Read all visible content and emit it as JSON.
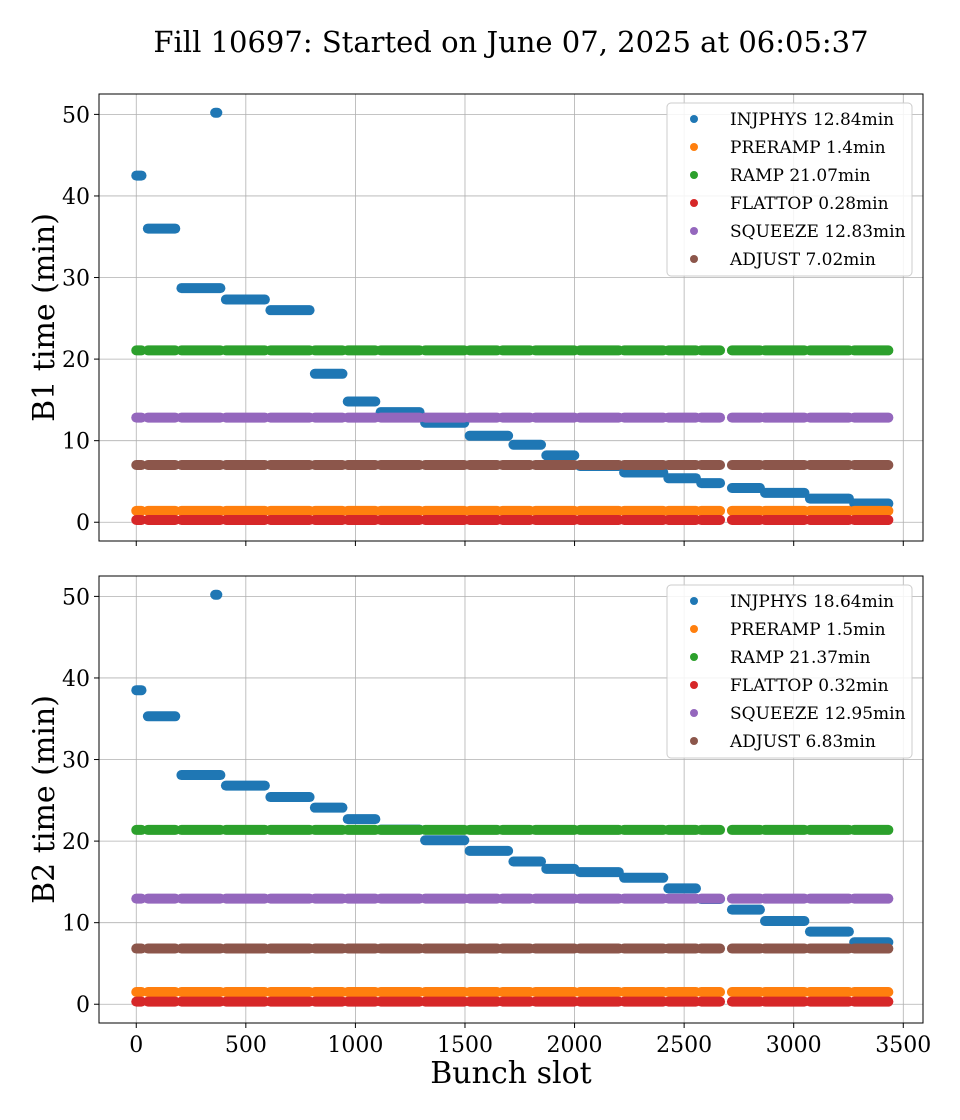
{
  "figure": {
    "title": "Fill 10697: Started on June 07, 2025 at 06:05:37",
    "xlabel": "Bunch slot"
  },
  "colors": {
    "INJPHYS": "#1f77b4",
    "PRERAMP": "#ff7f0e",
    "RAMP": "#2ca02c",
    "FLATTOP": "#d62728",
    "SQUEEZE": "#9467bd",
    "ADJUST": "#8c564b"
  },
  "chart_data": [
    {
      "type": "scatter",
      "ylabel": "B1 time (min)",
      "xlim": [
        -170,
        3590
      ],
      "ylim": [
        -2.3,
        52.5
      ],
      "xticks": [
        0,
        500,
        1000,
        1500,
        2000,
        2500,
        3000,
        3500
      ],
      "xticklabels": [],
      "yticks": [
        0,
        10,
        20,
        30,
        40,
        50
      ],
      "grid": true,
      "legend_position": "top-right",
      "slot_groups": [
        [
          0,
          24
        ],
        [
          53,
          178
        ],
        [
          206,
          384
        ],
        [
          409,
          587
        ],
        [
          612,
          791
        ],
        [
          815,
          941
        ],
        [
          965,
          1091
        ],
        [
          1115,
          1293
        ],
        [
          1318,
          1497
        ],
        [
          1521,
          1647
        ],
        [
          1671,
          1797
        ],
        [
          1821,
          1999
        ],
        [
          2024,
          2202
        ],
        [
          2226,
          2405
        ],
        [
          2428,
          2554
        ],
        [
          2578,
          2664
        ],
        [
          2718,
          2846
        ],
        [
          2869,
          3049
        ],
        [
          3074,
          3252
        ],
        [
          3276,
          3432
        ]
      ],
      "series": [
        {
          "name": "INJPHYS",
          "legend": "INJPHYS 12.84min",
          "points": [
            {
              "x": [
                0,
                24
              ],
              "y": 42.5
            },
            {
              "x": [
                360,
                370
              ],
              "y": 50.2
            },
            {
              "x": [
                53,
                178
              ],
              "y": 36.0
            },
            {
              "x": [
                206,
                384
              ],
              "y": 28.7
            },
            {
              "x": [
                409,
                587
              ],
              "y": 27.3
            },
            {
              "x": [
                612,
                791
              ],
              "y": 26.0
            },
            {
              "x": [
                815,
                941
              ],
              "y": 18.2
            },
            {
              "x": [
                965,
                1091
              ],
              "y": 14.8
            },
            {
              "x": [
                1115,
                1293
              ],
              "y": 13.5
            },
            {
              "x": [
                1318,
                1497
              ],
              "y": 12.2
            },
            {
              "x": [
                1521,
                1697
              ],
              "y": 10.6
            },
            {
              "x": [
                1721,
                1847
              ],
              "y": 9.5
            },
            {
              "x": [
                1871,
                1999
              ],
              "y": 8.2
            },
            {
              "x": [
                2024,
                2202
              ],
              "y": 6.9
            },
            {
              "x": [
                2226,
                2405
              ],
              "y": 6.1
            },
            {
              "x": [
                2428,
                2554
              ],
              "y": 5.4
            },
            {
              "x": [
                2578,
                2664
              ],
              "y": 4.8
            },
            {
              "x": [
                2718,
                2846
              ],
              "y": 4.2
            },
            {
              "x": [
                2869,
                3049
              ],
              "y": 3.6
            },
            {
              "x": [
                3074,
                3252
              ],
              "y": 2.9
            },
            {
              "x": [
                3276,
                3432
              ],
              "y": 2.3
            }
          ]
        },
        {
          "name": "PRERAMP",
          "legend": "PRERAMP 1.4min",
          "y": 1.4
        },
        {
          "name": "RAMP",
          "legend": "RAMP 21.07min",
          "y": 21.07
        },
        {
          "name": "FLATTOP",
          "legend": "FLATTOP 0.28min",
          "y": 0.28
        },
        {
          "name": "SQUEEZE",
          "legend": "SQUEEZE 12.83min",
          "y": 12.83
        },
        {
          "name": "ADJUST",
          "legend": "ADJUST 7.02min",
          "y": 7.02
        }
      ]
    },
    {
      "type": "scatter",
      "ylabel": "B2 time (min)",
      "xlim": [
        -170,
        3590
      ],
      "ylim": [
        -2.3,
        52.5
      ],
      "xticks": [
        0,
        500,
        1000,
        1500,
        2000,
        2500,
        3000,
        3500
      ],
      "xticklabels": [
        "0",
        "500",
        "1000",
        "1500",
        "2000",
        "2500",
        "3000",
        "3500"
      ],
      "yticks": [
        0,
        10,
        20,
        30,
        40,
        50
      ],
      "grid": true,
      "legend_position": "top-right",
      "slot_groups": [
        [
          0,
          24
        ],
        [
          53,
          178
        ],
        [
          206,
          384
        ],
        [
          409,
          587
        ],
        [
          612,
          791
        ],
        [
          815,
          941
        ],
        [
          965,
          1091
        ],
        [
          1115,
          1293
        ],
        [
          1318,
          1497
        ],
        [
          1521,
          1647
        ],
        [
          1671,
          1797
        ],
        [
          1821,
          1999
        ],
        [
          2024,
          2202
        ],
        [
          2226,
          2405
        ],
        [
          2428,
          2554
        ],
        [
          2578,
          2664
        ],
        [
          2718,
          2846
        ],
        [
          2869,
          3049
        ],
        [
          3074,
          3252
        ],
        [
          3276,
          3432
        ]
      ],
      "series": [
        {
          "name": "INJPHYS",
          "legend": "INJPHYS 18.64min",
          "points": [
            {
              "x": [
                0,
                24
              ],
              "y": 38.5
            },
            {
              "x": [
                360,
                370
              ],
              "y": 50.2
            },
            {
              "x": [
                53,
                178
              ],
              "y": 35.3
            },
            {
              "x": [
                206,
                384
              ],
              "y": 28.1
            },
            {
              "x": [
                409,
                587
              ],
              "y": 26.8
            },
            {
              "x": [
                612,
                791
              ],
              "y": 25.4
            },
            {
              "x": [
                815,
                941
              ],
              "y": 24.1
            },
            {
              "x": [
                965,
                1091
              ],
              "y": 22.7
            },
            {
              "x": [
                1115,
                1293
              ],
              "y": 21.4
            },
            {
              "x": [
                1318,
                1497
              ],
              "y": 20.1
            },
            {
              "x": [
                1521,
                1697
              ],
              "y": 18.8
            },
            {
              "x": [
                1721,
                1847
              ],
              "y": 17.5
            },
            {
              "x": [
                1871,
                1999
              ],
              "y": 16.6
            },
            {
              "x": [
                2024,
                2202
              ],
              "y": 16.2
            },
            {
              "x": [
                2226,
                2405
              ],
              "y": 15.5
            },
            {
              "x": [
                2428,
                2554
              ],
              "y": 14.2
            },
            {
              "x": [
                2578,
                2664
              ],
              "y": 12.9
            },
            {
              "x": [
                2718,
                2846
              ],
              "y": 11.6
            },
            {
              "x": [
                2869,
                3049
              ],
              "y": 10.2
            },
            {
              "x": [
                3074,
                3252
              ],
              "y": 8.9
            },
            {
              "x": [
                3276,
                3432
              ],
              "y": 7.6
            }
          ]
        },
        {
          "name": "PRERAMP",
          "legend": "PRERAMP 1.5min",
          "y": 1.5
        },
        {
          "name": "RAMP",
          "legend": "RAMP 21.37min",
          "y": 21.37
        },
        {
          "name": "FLATTOP",
          "legend": "FLATTOP 0.32min",
          "y": 0.32
        },
        {
          "name": "SQUEEZE",
          "legend": "SQUEEZE 12.95min",
          "y": 12.95
        },
        {
          "name": "ADJUST",
          "legend": "ADJUST 6.83min",
          "y": 6.83
        }
      ]
    }
  ]
}
